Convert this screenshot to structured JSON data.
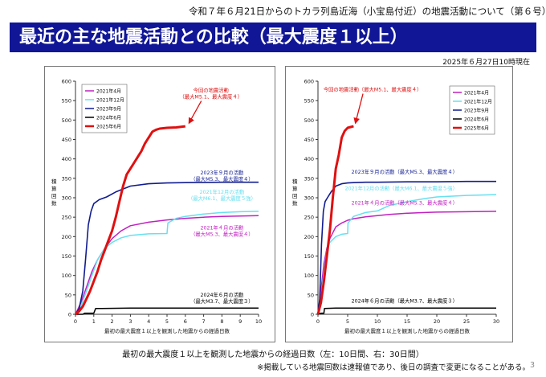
{
  "header": {
    "doc_title": "令和７年６月21日からのトカラ列島近海（小宝島付近）の地震活動について（第６号）",
    "banner": "最近の主な地震活動との比較（最大震度１以上）",
    "as_of": "2025年６月27日10時現在"
  },
  "footer": {
    "caption": "最初の最大震度１以上を観測した地震からの経過日数（左：10日間、右：30日間）",
    "note": "※掲載している地震回数は速報値であり、後日の調査で変更になることがある。",
    "page": "3"
  },
  "colors": {
    "banner": "#101696",
    "s2021_04": "#c020c0",
    "s2021_12": "#66e0f0",
    "s2023_09": "#101c90",
    "s2024_06": "#000000",
    "s2025_06": "#e01010"
  },
  "chart_data": [
    {
      "type": "line",
      "ylabel": "積算回数",
      "xlabel": "最初の最大震度１以上を観測した地震からの経過日数",
      "xlim": [
        0,
        10
      ],
      "ylim": [
        0,
        600
      ],
      "xticks": [
        0,
        1,
        2,
        3,
        4,
        5,
        6,
        7,
        8,
        9,
        10
      ],
      "yticks": [
        0,
        50,
        100,
        150,
        200,
        250,
        300,
        350,
        400,
        450,
        500,
        550,
        600
      ],
      "grid": false,
      "legend_position": "top-left",
      "series": [
        {
          "name": "2021年4月",
          "color": "#c020c0",
          "width": 1.5,
          "x": [
            0,
            0.3,
            0.6,
            0.9,
            1.2,
            1.6,
            2.0,
            2.5,
            3.0,
            4.0,
            5.0,
            6.0,
            7.0,
            8.0,
            9.0,
            10.0
          ],
          "y": [
            0,
            30,
            70,
            110,
            140,
            170,
            195,
            215,
            228,
            237,
            243,
            247,
            250,
            252,
            253,
            254
          ]
        },
        {
          "name": "2021年12月",
          "color": "#66e0f0",
          "width": 1.5,
          "x": [
            0,
            0.3,
            0.6,
            0.9,
            1.2,
            1.6,
            2.0,
            2.5,
            3.0,
            4.0,
            5.0,
            5.05,
            5.5,
            6.0,
            7.0,
            8.0,
            9.0,
            10.0
          ],
          "y": [
            0,
            20,
            60,
            100,
            140,
            170,
            185,
            197,
            203,
            207,
            208,
            235,
            247,
            252,
            258,
            262,
            264,
            265
          ]
        },
        {
          "name": "2023年9月",
          "color": "#101c90",
          "width": 1.6,
          "x": [
            0,
            0.2,
            0.4,
            0.55,
            0.7,
            0.85,
            1.0,
            1.3,
            1.7,
            2.2,
            3.0,
            4.0,
            5.0,
            6.0,
            8.0,
            10.0
          ],
          "y": [
            0,
            15,
            60,
            140,
            230,
            265,
            285,
            295,
            302,
            315,
            330,
            336,
            338,
            339,
            340,
            340
          ]
        },
        {
          "name": "2024年6月",
          "color": "#000000",
          "width": 1.5,
          "x": [
            0,
            0.4,
            0.5,
            1.0,
            1.1,
            3.0,
            10.0
          ],
          "y": [
            0,
            0,
            3,
            3,
            15,
            16,
            16
          ]
        },
        {
          "name": "2025年6月",
          "color": "#e01010",
          "width": 3,
          "x": [
            0,
            0.2,
            0.4,
            0.6,
            0.8,
            1.0,
            1.2,
            1.4,
            1.6,
            1.8,
            2.0,
            2.2,
            2.4,
            2.6,
            2.8,
            3.0,
            3.2,
            3.4,
            3.6,
            3.8,
            4.0,
            4.2,
            4.4,
            4.6,
            4.8,
            5.0,
            5.5,
            6.0
          ],
          "y": [
            0,
            8,
            20,
            40,
            60,
            85,
            110,
            140,
            165,
            190,
            215,
            250,
            290,
            330,
            360,
            375,
            390,
            405,
            420,
            440,
            455,
            470,
            475,
            478,
            479,
            480,
            481,
            484
          ]
        }
      ],
      "annotations": [
        {
          "lines": [
            "今回の地震活動",
            "（最大M5.1、最大震度４）"
          ],
          "color": "#e01010",
          "x": 7.4,
          "y": 572,
          "anchor": "middle",
          "arrow_to": [
            6.2,
            492
          ]
        },
        {
          "lines": [
            "2023年９月の活動",
            "（最大M5.3、最大震度４）"
          ],
          "color": "#101c90",
          "x": 8.0,
          "y": 360,
          "anchor": "middle"
        },
        {
          "lines": [
            "2021年12月の活動",
            "（最大M6.1、最大震度５強）"
          ],
          "color": "#66e0f0",
          "x": 8.0,
          "y": 310,
          "anchor": "middle"
        },
        {
          "lines": [
            "2021年４月の活動",
            "（最大M5.3、最大震度４）"
          ],
          "color": "#c020c0",
          "x": 8.0,
          "y": 218,
          "anchor": "middle"
        },
        {
          "lines": [
            "2024年６月の活動",
            "（最大M3.7、最大震度３）"
          ],
          "color": "#000000",
          "x": 8.0,
          "y": 46,
          "anchor": "middle"
        }
      ]
    },
    {
      "type": "line",
      "ylabel": "積算回数",
      "xlabel": "最初の最大震度１以上を観測した地震からの経過日数",
      "xlim": [
        0,
        30
      ],
      "ylim": [
        0,
        600
      ],
      "xticks": [
        0,
        5,
        10,
        15,
        20,
        25,
        30
      ],
      "yticks": [
        0,
        50,
        100,
        150,
        200,
        250,
        300,
        350,
        400,
        450,
        500,
        550,
        600
      ],
      "grid": false,
      "legend_position": "top-right",
      "series": [
        {
          "name": "2021年4月",
          "color": "#c020c0",
          "width": 1.5,
          "x": [
            0,
            0.5,
            1,
            1.5,
            2,
            3,
            4,
            5,
            6,
            8,
            10,
            12,
            15,
            18,
            20,
            25,
            30
          ],
          "y": [
            0,
            60,
            130,
            170,
            195,
            225,
            235,
            242,
            246,
            251,
            254,
            257,
            260,
            262,
            263,
            264,
            265
          ]
        },
        {
          "name": "2021年12月",
          "color": "#66e0f0",
          "width": 1.5,
          "x": [
            0,
            0.5,
            1,
            1.5,
            2,
            3,
            4,
            5,
            5.05,
            6,
            8,
            10,
            12,
            15,
            18,
            20,
            25,
            30
          ],
          "y": [
            0,
            40,
            110,
            165,
            185,
            200,
            206,
            208,
            235,
            252,
            262,
            266,
            280,
            290,
            298,
            302,
            306,
            308
          ]
        },
        {
          "name": "2023年9月",
          "color": "#101c90",
          "width": 1.6,
          "x": [
            0,
            0.3,
            0.6,
            0.9,
            1.2,
            1.6,
            2.2,
            3,
            4,
            5,
            6,
            8,
            10,
            15,
            20,
            25,
            30
          ],
          "y": [
            0,
            40,
            180,
            265,
            290,
            300,
            315,
            330,
            336,
            338,
            339,
            340,
            340,
            341,
            341,
            342,
            342
          ]
        },
        {
          "name": "2024年6月",
          "color": "#000000",
          "width": 1.5,
          "x": [
            0,
            0.5,
            1,
            1.1,
            3,
            10,
            20,
            30
          ],
          "y": [
            0,
            3,
            3,
            15,
            16,
            16,
            16,
            16
          ]
        },
        {
          "name": "2025年6月",
          "color": "#e01010",
          "width": 3,
          "x": [
            0,
            0.5,
            1,
            1.5,
            2,
            2.5,
            3,
            3.5,
            4,
            4.5,
            5,
            5.5,
            6
          ],
          "y": [
            0,
            30,
            85,
            150,
            215,
            300,
            375,
            410,
            455,
            472,
            480,
            482,
            484
          ]
        }
      ],
      "annotations": [
        {
          "lines": [
            "今回の地震活動（最大M5.1、最大震度４）"
          ],
          "color": "#e01010",
          "x": 9.2,
          "y": 574,
          "anchor": "middle",
          "arrow_to": [
            6.3,
            492
          ]
        },
        {
          "lines": [
            "2023年９月の活動（最大M5.3、最大震度４）"
          ],
          "color": "#101c90",
          "x": 23.5,
          "y": 362,
          "anchor": "end"
        },
        {
          "lines": [
            "2021年12月の活動（最大M6.1、最大震度５強）"
          ],
          "color": "#66e0f0",
          "x": 23.5,
          "y": 320,
          "anchor": "end"
        },
        {
          "lines": [
            "2021年４月の活動（最大M5.3、最大震度４）"
          ],
          "color": "#c020c0",
          "x": 23.5,
          "y": 282,
          "anchor": "end"
        },
        {
          "lines": [
            "2024年６月の活動（最大M3.7、最大震度３）"
          ],
          "color": "#000000",
          "x": 23.5,
          "y": 30,
          "anchor": "end"
        }
      ]
    }
  ]
}
